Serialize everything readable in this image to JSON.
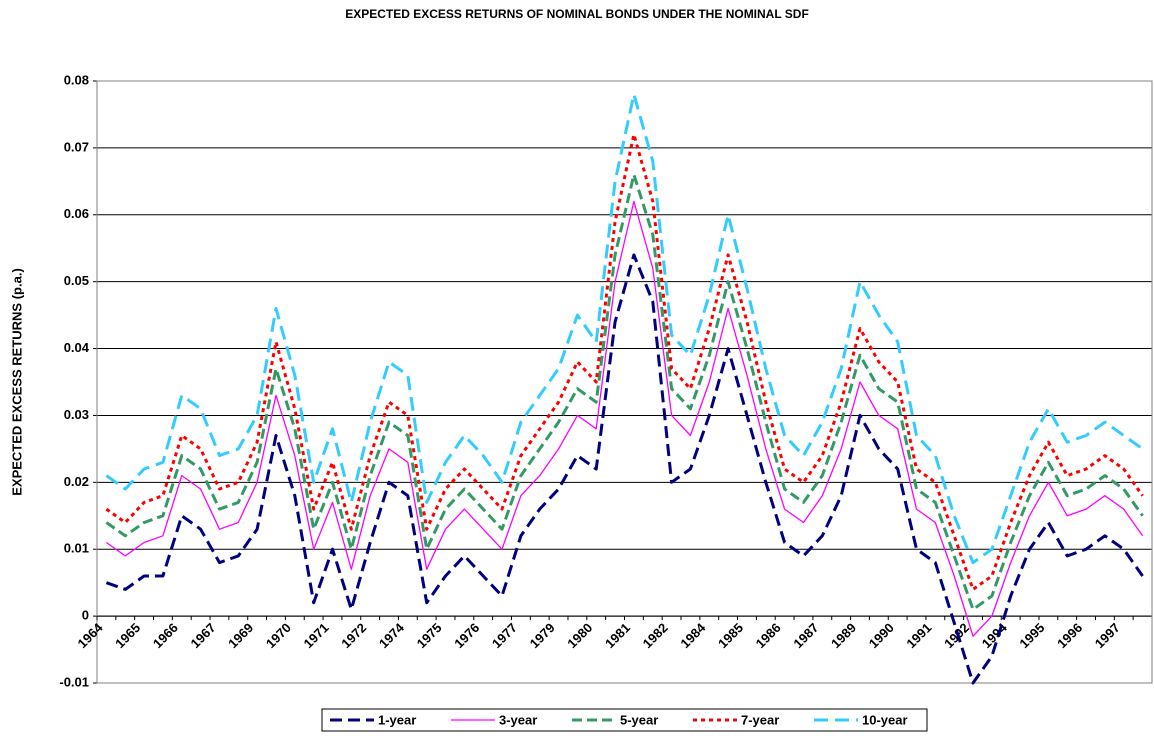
{
  "chart_data": {
    "type": "line",
    "title": "EXPECTED EXCESS RETURNS OF NOMINAL BONDS UNDER THE NOMINAL SDF",
    "y_label": "EXPECTED EXCESS RETURNS (p.a.)",
    "categories": [
      "1964",
      null,
      "1965",
      null,
      "1966",
      null,
      "1967",
      null,
      "1969",
      null,
      "1970",
      null,
      "1971",
      null,
      "1972",
      null,
      "1974",
      null,
      "1975",
      null,
      "1976",
      null,
      "1977",
      null,
      "1979",
      null,
      "1980",
      null,
      "1981",
      null,
      "1982",
      null,
      "1984",
      null,
      "1985",
      null,
      "1986",
      null,
      "1987",
      null,
      "1989",
      null,
      "1990",
      null,
      "1991",
      null,
      "1992",
      null,
      "1994",
      null,
      "1995",
      null,
      "1996",
      null,
      "1997",
      null
    ],
    "ylim": [
      -0.01,
      0.08
    ],
    "yticks": [
      -0.01,
      0,
      0.01,
      0.02,
      0.03,
      0.04,
      0.05,
      0.06,
      0.07,
      0.08
    ],
    "grid": true,
    "legend": "bottom",
    "series": [
      {
        "name": "1-year",
        "color": "#000080",
        "values": [
          0.005,
          0.004,
          0.006,
          0.006,
          0.015,
          0.013,
          0.008,
          0.009,
          0.013,
          0.027,
          0.018,
          0.002,
          0.01,
          0.001,
          0.011,
          0.02,
          0.018,
          0.002,
          0.006,
          0.009,
          0.006,
          0.003,
          0.012,
          0.016,
          0.019,
          0.024,
          0.022,
          0.044,
          0.054,
          0.047,
          0.02,
          0.022,
          0.03,
          0.04,
          0.03,
          0.02,
          0.011,
          0.009,
          0.012,
          0.018,
          0.03,
          0.025,
          0.022,
          0.01,
          0.008,
          -0.001,
          -0.01,
          -0.006,
          0.003,
          0.01,
          0.014,
          0.009,
          0.01,
          0.012,
          0.01,
          0.006
        ]
      },
      {
        "name": "3-year",
        "color": "#ff00ff",
        "values": [
          0.011,
          0.009,
          0.011,
          0.012,
          0.021,
          0.019,
          0.013,
          0.014,
          0.02,
          0.033,
          0.024,
          0.01,
          0.017,
          0.007,
          0.018,
          0.025,
          0.023,
          0.007,
          0.013,
          0.016,
          0.013,
          0.01,
          0.018,
          0.021,
          0.025,
          0.03,
          0.028,
          0.05,
          0.062,
          0.052,
          0.03,
          0.027,
          0.035,
          0.046,
          0.036,
          0.025,
          0.016,
          0.014,
          0.018,
          0.025,
          0.035,
          0.03,
          0.028,
          0.016,
          0.014,
          0.006,
          -0.003,
          0.0,
          0.008,
          0.015,
          0.02,
          0.015,
          0.016,
          0.018,
          0.016,
          0.012
        ]
      },
      {
        "name": "5-year",
        "color": "#339966",
        "values": [
          0.014,
          0.012,
          0.014,
          0.015,
          0.024,
          0.022,
          0.016,
          0.017,
          0.023,
          0.037,
          0.028,
          0.013,
          0.02,
          0.01,
          0.021,
          0.029,
          0.027,
          0.01,
          0.016,
          0.019,
          0.016,
          0.013,
          0.021,
          0.025,
          0.029,
          0.034,
          0.032,
          0.054,
          0.066,
          0.057,
          0.034,
          0.031,
          0.039,
          0.05,
          0.04,
          0.029,
          0.019,
          0.017,
          0.021,
          0.029,
          0.039,
          0.034,
          0.032,
          0.019,
          0.017,
          0.009,
          0.001,
          0.003,
          0.011,
          0.018,
          0.023,
          0.018,
          0.019,
          0.021,
          0.019,
          0.015
        ]
      },
      {
        "name": "7-year",
        "color": "#ff0000",
        "values": [
          0.016,
          0.014,
          0.017,
          0.018,
          0.027,
          0.025,
          0.019,
          0.02,
          0.026,
          0.041,
          0.031,
          0.016,
          0.023,
          0.013,
          0.024,
          0.032,
          0.03,
          0.013,
          0.019,
          0.022,
          0.019,
          0.016,
          0.024,
          0.028,
          0.032,
          0.038,
          0.035,
          0.059,
          0.072,
          0.062,
          0.037,
          0.034,
          0.043,
          0.054,
          0.044,
          0.032,
          0.022,
          0.02,
          0.024,
          0.032,
          0.043,
          0.038,
          0.035,
          0.022,
          0.02,
          0.012,
          0.004,
          0.006,
          0.014,
          0.021,
          0.026,
          0.021,
          0.022,
          0.024,
          0.022,
          0.018
        ]
      },
      {
        "name": "10-year",
        "color": "#33ccff",
        "values": [
          0.021,
          0.019,
          0.022,
          0.023,
          0.033,
          0.031,
          0.024,
          0.025,
          0.03,
          0.046,
          0.036,
          0.02,
          0.028,
          0.017,
          0.029,
          0.038,
          0.036,
          0.017,
          0.023,
          0.027,
          0.024,
          0.02,
          0.029,
          0.033,
          0.037,
          0.045,
          0.041,
          0.065,
          0.078,
          0.068,
          0.042,
          0.039,
          0.048,
          0.06,
          0.049,
          0.037,
          0.027,
          0.024,
          0.029,
          0.037,
          0.05,
          0.045,
          0.041,
          0.027,
          0.024,
          0.015,
          0.008,
          0.01,
          0.018,
          0.026,
          0.031,
          0.026,
          0.027,
          0.029,
          0.027,
          0.025
        ]
      }
    ]
  }
}
